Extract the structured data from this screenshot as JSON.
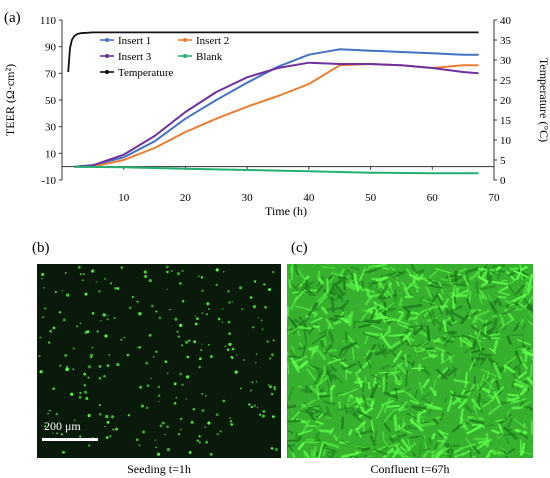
{
  "panels": {
    "a_label": "(a)",
    "b_label": "(b)",
    "c_label": "(c)"
  },
  "chart_data": {
    "type": "line",
    "xlabel": "Time (h)",
    "ylabel_left": "TEER (Ω·cm²)",
    "ylabel_right": "Temperature (°C)",
    "xlim": [
      0,
      70
    ],
    "ylim_left": [
      -10,
      110
    ],
    "ylim_right": [
      0,
      40
    ],
    "xticks": [
      10,
      20,
      30,
      40,
      50,
      60,
      70
    ],
    "yticks_left": [
      -10,
      10,
      30,
      50,
      70,
      90,
      110
    ],
    "yticks_right": [
      0,
      5,
      10,
      15,
      20,
      25,
      30,
      35,
      40
    ],
    "grid": false,
    "legend_position": "top-left",
    "series": [
      {
        "name": "Insert 1",
        "axis": "left",
        "color": "#4472c4",
        "x": [
          2,
          5,
          10,
          15,
          20,
          25,
          30,
          35,
          40,
          45,
          50,
          55,
          60,
          65,
          67.5
        ],
        "y": [
          0,
          1,
          7,
          19,
          36,
          50,
          63,
          75,
          84,
          88,
          87,
          86,
          85,
          84,
          84
        ]
      },
      {
        "name": "Insert 2",
        "axis": "left",
        "color": "#ed7d31",
        "x": [
          2,
          5,
          10,
          15,
          20,
          25,
          30,
          35,
          40,
          45,
          50,
          55,
          60,
          65,
          67.5
        ],
        "y": [
          0,
          0,
          5,
          14,
          26,
          36,
          45,
          53,
          62,
          76,
          77,
          76,
          74,
          76,
          76
        ]
      },
      {
        "name": "Insert 3",
        "axis": "left",
        "color": "#7030a0",
        "x": [
          2,
          5,
          10,
          15,
          20,
          25,
          30,
          35,
          40,
          45,
          50,
          55,
          60,
          65,
          67.5
        ],
        "y": [
          0,
          1,
          9,
          23,
          41,
          56,
          67,
          74,
          78,
          77,
          77,
          76,
          74,
          71,
          70
        ]
      },
      {
        "name": "Blank",
        "axis": "left",
        "color": "#21b06f",
        "x": [
          2,
          10,
          20,
          30,
          40,
          50,
          60,
          67.5
        ],
        "y": [
          0,
          -0.5,
          -1.5,
          -2.5,
          -3.5,
          -4.5,
          -5,
          -5
        ]
      },
      {
        "name": "Temperature",
        "axis": "right",
        "color": "#111111",
        "x": [
          1,
          1.3,
          1.6,
          2,
          2.5,
          3,
          4,
          5,
          10,
          20,
          30,
          40,
          50,
          60,
          67.5
        ],
        "y": [
          27,
          33,
          35,
          36,
          36.5,
          36.7,
          36.8,
          36.9,
          36.9,
          36.9,
          36.9,
          36.9,
          36.9,
          36.9,
          36.9
        ]
      }
    ]
  },
  "micrographs": {
    "seeding_caption": "Seeding t=1h",
    "confluent_caption": "Confluent  t=67h",
    "scale_text": "200 μm"
  },
  "colors": {
    "micro_dark_bg": "#0a1a0a",
    "micro_green_bg": "#36b02e",
    "cell_green": "#5dff4a"
  }
}
